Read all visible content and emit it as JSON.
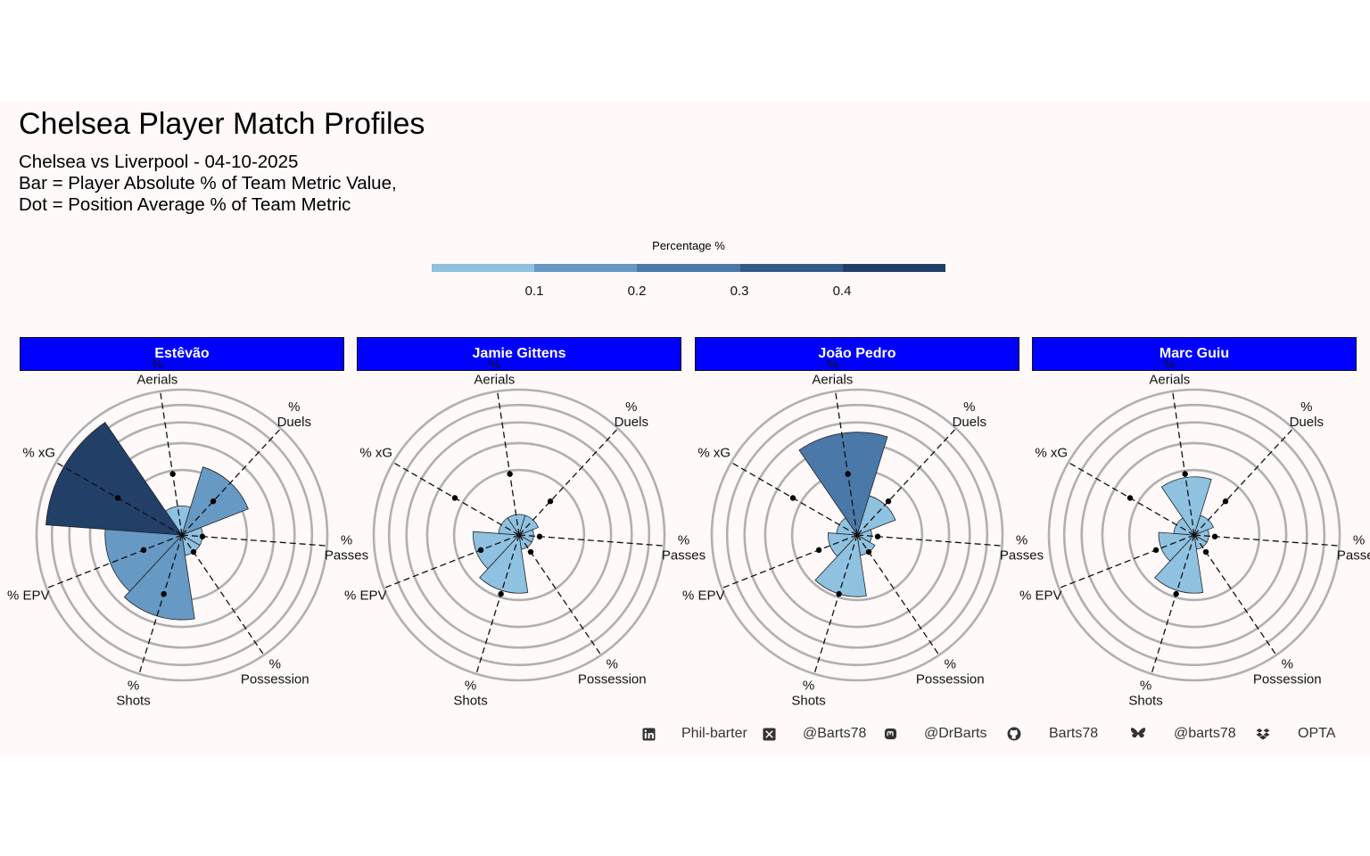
{
  "header": {
    "title": "Chelsea Player Match Profiles",
    "subtitle_lines": [
      "Chelsea vs Liverpool - 04-10-2025",
      "Bar = Player Absolute % of Team Metric Value,",
      "Dot = Position Average % of Team Metric"
    ]
  },
  "legend": {
    "title": "Percentage %",
    "ticks": [
      "0.1",
      "0.2",
      "0.3",
      "0.4"
    ],
    "colors": [
      "#8fc1e0",
      "#6699c4",
      "#4a78a8",
      "#325a88",
      "#223f68"
    ]
  },
  "footer": {
    "items": [
      {
        "icon": "linkedin-icon",
        "text": "Phil-barter"
      },
      {
        "icon": "x-icon",
        "text": "@Barts78"
      },
      {
        "icon": "mastodon-icon",
        "text": "@DrBarts"
      },
      {
        "icon": "github-icon",
        "text": "Barts78"
      },
      {
        "icon": "bluesky-icon",
        "text": "@barts78"
      },
      {
        "icon": "dropbox-icon",
        "text": "OPTA"
      }
    ]
  },
  "chart_data": {
    "type": "polar-bar",
    "metrics": [
      "% Aerials",
      "% Duels",
      "% Passes",
      "% Possession",
      "% Shots",
      "% EPV",
      "% xG"
    ],
    "metric_labels": [
      [
        "%",
        "Aerials"
      ],
      [
        "%",
        "Duels"
      ],
      [
        "%",
        "Passes"
      ],
      [
        "%",
        "Possession"
      ],
      [
        "%",
        "Shots"
      ],
      [
        "% EPV"
      ],
      [
        "% xG"
      ]
    ],
    "rlim": [
      0,
      0.5
    ],
    "grid_rings": [
      0.1,
      0.2,
      0.3,
      0.4,
      0.5
    ],
    "panels": [
      {
        "player": "Estêvão",
        "bars": [
          0.02,
          0.12,
          0.01,
          0.01,
          0.17,
          0.14,
          0.44
        ],
        "dots": [
          0.09,
          0.05,
          0.01,
          0.01,
          0.09,
          0.04,
          0.13
        ]
      },
      {
        "player": "Jamie Gittens",
        "bars": [
          0.01,
          0.01,
          0.005,
          0.005,
          0.08,
          0.05,
          0.01
        ],
        "dots": [
          0.09,
          0.05,
          0.01,
          0.01,
          0.09,
          0.04,
          0.13
        ]
      },
      {
        "player": "João Pedro",
        "bars": [
          0.25,
          0.04,
          0.005,
          0.01,
          0.09,
          0.02,
          0.01
        ],
        "dots": [
          0.09,
          0.05,
          0.01,
          0.01,
          0.09,
          0.04,
          0.13
        ]
      },
      {
        "player": "Marc Guiu",
        "bars": [
          0.08,
          0.01,
          0.005,
          0.005,
          0.08,
          0.03,
          0.01
        ],
        "dots": [
          0.09,
          0.05,
          0.01,
          0.01,
          0.09,
          0.04,
          0.13
        ]
      }
    ]
  }
}
